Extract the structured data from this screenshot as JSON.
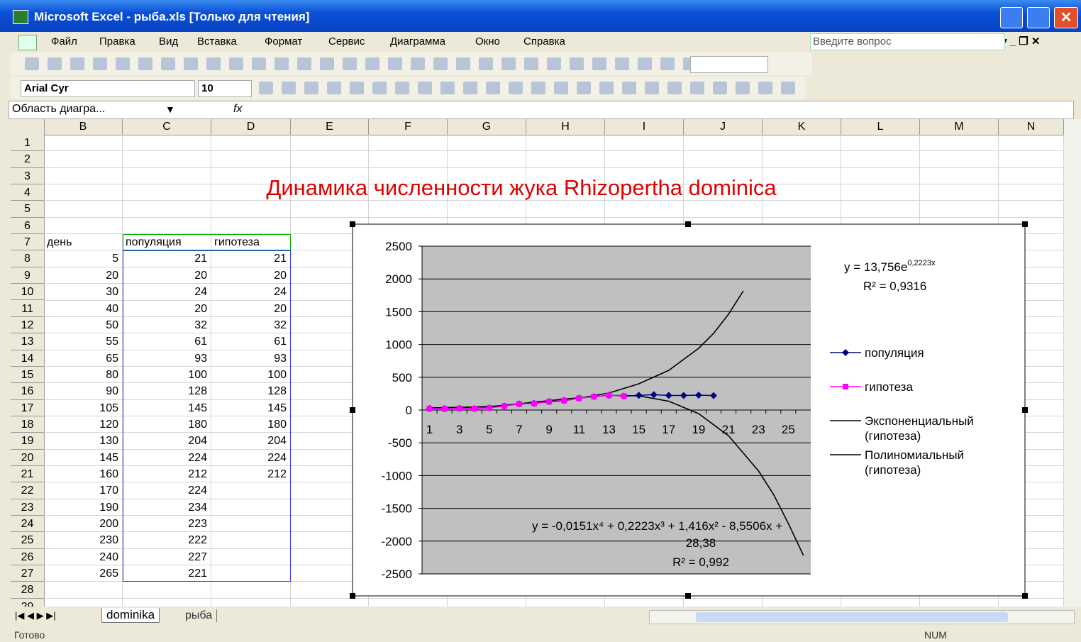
{
  "window": {
    "title": "Microsoft Excel - рыба.xls  [Только для чтения]"
  },
  "menu": [
    "Файл",
    "Правка",
    "Вид",
    "Вставка",
    "Формат",
    "Сервис",
    "Диаграмма",
    "Окно",
    "Справка"
  ],
  "help_box": "Введите вопрос",
  "format_bar": {
    "font": "Arial Cyr",
    "size": 10
  },
  "name_box": "Область диагра...",
  "sheet": {
    "columns": [
      "B",
      "C",
      "D",
      "E",
      "F",
      "G",
      "H",
      "I",
      "J",
      "K",
      "L",
      "M",
      "N"
    ],
    "row_numbers": [
      1,
      2,
      3,
      4,
      5,
      6,
      7,
      8,
      9,
      10,
      11,
      12,
      13,
      14,
      15,
      16,
      17,
      18,
      19,
      20,
      21,
      22,
      23,
      24,
      25,
      26,
      27,
      28,
      29
    ],
    "title": "Динамика численности жука Rhizopertha dominica",
    "table": {
      "header": [
        "день",
        "популяция",
        "гипотеза"
      ],
      "rows": [
        [
          5,
          21,
          21
        ],
        [
          20,
          20,
          20
        ],
        [
          30,
          24,
          24
        ],
        [
          40,
          20,
          20
        ],
        [
          50,
          32,
          32
        ],
        [
          55,
          61,
          61
        ],
        [
          65,
          93,
          93
        ],
        [
          80,
          100,
          100
        ],
        [
          90,
          128,
          128
        ],
        [
          105,
          145,
          145
        ],
        [
          120,
          180,
          180
        ],
        [
          130,
          204,
          204
        ],
        [
          145,
          224,
          224
        ],
        [
          160,
          212,
          212
        ],
        [
          170,
          224,
          null
        ],
        [
          190,
          234,
          null
        ],
        [
          200,
          223,
          null
        ],
        [
          230,
          222,
          null
        ],
        [
          240,
          227,
          null
        ],
        [
          265,
          221,
          null
        ]
      ]
    }
  },
  "chart_data": {
    "type": "line",
    "categories": [
      1,
      null,
      3,
      null,
      5,
      null,
      7,
      null,
      9,
      null,
      11,
      null,
      13,
      null,
      15,
      null,
      17,
      null,
      19,
      null,
      21,
      null,
      23,
      null,
      25,
      null
    ],
    "series": [
      {
        "name": "популяция",
        "color": "#000080",
        "values": [
          21,
          20,
          24,
          20,
          32,
          61,
          93,
          100,
          128,
          145,
          180,
          204,
          224,
          212,
          224,
          234,
          223,
          222,
          227,
          221,
          null,
          null,
          null,
          null,
          null,
          null
        ]
      },
      {
        "name": "гипотеза",
        "color": "#ff00ff",
        "values": [
          21,
          20,
          24,
          20,
          32,
          61,
          93,
          100,
          128,
          145,
          180,
          204,
          224,
          212,
          null,
          null,
          null,
          null,
          null,
          null,
          null,
          null,
          null,
          null,
          null,
          null
        ]
      }
    ],
    "trendlines": [
      {
        "name": "Экспоненциальный (гипотеза)",
        "equation": "y = 13,756e",
        "exponent": "0,2223x",
        "r2": "R² = 0,9316"
      },
      {
        "name": "Полиномиальный (гипотеза)",
        "equation": "y = -0,0151x⁴ + 0,2223x³ + 1,416x² - 8,5506x +",
        "equation_cont": "28,38",
        "r2": "R² = 0,992"
      }
    ],
    "ylim": [
      -2500,
      2500
    ],
    "yticks": [
      -2500,
      -2000,
      -1500,
      -1000,
      -500,
      0,
      500,
      1000,
      1500,
      2000,
      2500
    ],
    "grid": true,
    "legend": "right"
  },
  "tabs": [
    "dominika",
    "рыба"
  ],
  "status": {
    "left": "Готово",
    "num": "NUM"
  }
}
